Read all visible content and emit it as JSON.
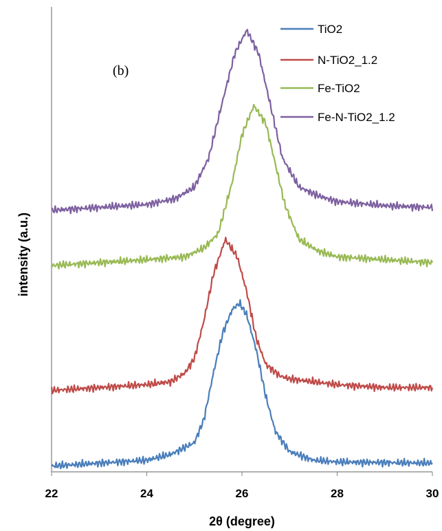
{
  "chart_data": {
    "type": "line",
    "panel_label": "(b)",
    "xlabel": "2θ (degree)",
    "ylabel": "intensity (a.u.)",
    "xlim": [
      22,
      30
    ],
    "xticks": [
      "22",
      "24",
      "26",
      "28",
      "30"
    ],
    "y_ticks_shown": false,
    "grid": false,
    "legend_position": "top-right",
    "series": [
      {
        "name": "TiO2",
        "color": "#4a7ebb",
        "peak_position": 25.95,
        "peak_width": 0.3,
        "baseline_start": 1.0,
        "baseline_end": 1.5,
        "peak_height": 28.0,
        "x": [
          22.0,
          23.0,
          24.0,
          24.5,
          25.0,
          25.2,
          25.4,
          25.6,
          25.8,
          25.95,
          26.1,
          26.3,
          26.5,
          26.7,
          27.0,
          27.5,
          28.0,
          29.0,
          30.0
        ],
        "y": [
          1.0,
          1.5,
          2.0,
          3.0,
          5.0,
          9.0,
          17.0,
          24.0,
          28.0,
          29.0,
          27.0,
          21.0,
          13.0,
          7.0,
          3.5,
          2.0,
          1.7,
          1.6,
          1.5
        ]
      },
      {
        "name": "N-TiO2_1.2",
        "color": "#be4b48",
        "peak_position": 25.65,
        "peak_width": 0.32,
        "baseline_start": 14.0,
        "baseline_end": 14.5,
        "peak_height": 26.0,
        "x": [
          22.0,
          23.0,
          24.0,
          24.5,
          24.8,
          25.0,
          25.2,
          25.4,
          25.65,
          25.9,
          26.1,
          26.3,
          26.5,
          26.8,
          27.0,
          27.5,
          28.0,
          29.0,
          30.0
        ],
        "y": [
          14.0,
          14.5,
          15.0,
          15.5,
          17.0,
          19.5,
          26.0,
          34.0,
          40.0,
          37.0,
          31.0,
          23.0,
          18.5,
          16.5,
          16.0,
          15.5,
          15.0,
          14.5,
          14.5
        ]
      },
      {
        "name": "Fe-TiO2",
        "color": "#98b954",
        "peak_position": 26.25,
        "peak_width": 0.33,
        "baseline_start": 35.5,
        "baseline_end": 36.0,
        "peak_height": 27.5,
        "x": [
          22.0,
          23.0,
          24.0,
          24.8,
          25.2,
          25.5,
          25.8,
          26.0,
          26.25,
          26.5,
          26.7,
          26.9,
          27.2,
          27.6,
          28.0,
          29.0,
          30.0
        ],
        "y": [
          35.5,
          36.0,
          36.5,
          37.0,
          38.5,
          41.0,
          50.0,
          58.0,
          63.0,
          60.0,
          53.0,
          46.0,
          40.0,
          38.0,
          37.0,
          36.5,
          36.0
        ]
      },
      {
        "name": "Fe-N-TiO2_1.2",
        "color": "#7d60a0",
        "peak_position": 26.1,
        "peak_width": 0.34,
        "baseline_start": 45.0,
        "baseline_end": 45.5,
        "peak_height": 31.0,
        "x": [
          22.0,
          23.0,
          24.0,
          24.6,
          25.0,
          25.3,
          25.6,
          25.85,
          26.1,
          26.35,
          26.6,
          26.85,
          27.2,
          27.6,
          28.0,
          29.0,
          30.0
        ],
        "y": [
          45.0,
          45.5,
          46.0,
          47.0,
          49.0,
          54.0,
          64.0,
          72.0,
          76.0,
          72.0,
          63.0,
          54.0,
          49.0,
          47.5,
          46.5,
          45.8,
          45.5
        ]
      }
    ],
    "ylim": [
      0,
      80
    ]
  }
}
